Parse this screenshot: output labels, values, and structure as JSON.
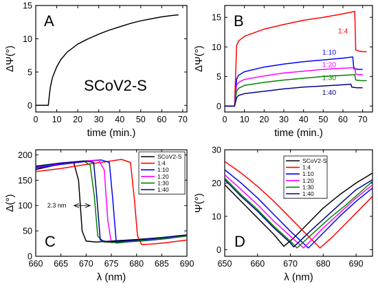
{
  "chart_data": [
    {
      "panel": "A",
      "type": "line",
      "xlabel": "time (min.)",
      "ylabel": "ΔΨ(°)",
      "xlim": [
        0,
        72
      ],
      "ylim": [
        -1,
        15
      ],
      "xticks": [
        0,
        10,
        20,
        30,
        40,
        50,
        60,
        70
      ],
      "yticks": [
        0,
        5,
        10,
        15
      ],
      "annotations": [
        "SCoV2-S"
      ],
      "series": [
        {
          "color": "#000000",
          "x": [
            0,
            6,
            6.5,
            7,
            8,
            9,
            10,
            12,
            15,
            20,
            25,
            30,
            35,
            40,
            45,
            50,
            55,
            60,
            65,
            68
          ],
          "y": [
            0,
            0,
            1.6,
            2.8,
            4.2,
            5.0,
            5.8,
            6.9,
            8.0,
            9.2,
            10.0,
            10.7,
            11.3,
            11.8,
            12.3,
            12.7,
            13.0,
            13.3,
            13.5,
            13.6
          ]
        }
      ]
    },
    {
      "panel": "B",
      "type": "line",
      "xlabel": "time (min.)",
      "ylabel": "ΔΨ(°)",
      "xlim": [
        0,
        75
      ],
      "ylim": [
        -1,
        17
      ],
      "xticks": [
        0,
        10,
        20,
        30,
        40,
        50,
        60,
        70
      ],
      "yticks": [
        0,
        5,
        10,
        15
      ],
      "series": [
        {
          "name": "1:4",
          "color": "#ff0000",
          "x": [
            0,
            5,
            5.5,
            6,
            7,
            10,
            15,
            20,
            30,
            40,
            50,
            60,
            66,
            66.5,
            68,
            70,
            72
          ],
          "y": [
            0,
            0,
            5,
            10.2,
            11.0,
            11.8,
            12.4,
            13.0,
            13.8,
            14.5,
            15.0,
            15.6,
            16.0,
            9.5,
            9.3,
            9.2,
            9.2
          ]
        },
        {
          "name": "1:10",
          "color": "#0000ff",
          "x": [
            0,
            5,
            6,
            7,
            10,
            20,
            30,
            40,
            50,
            60,
            65,
            65.5,
            68,
            70
          ],
          "y": [
            0,
            0,
            4.5,
            5.2,
            5.8,
            6.6,
            7.1,
            7.5,
            7.8,
            8.1,
            8.3,
            6.3,
            6.2,
            6.2
          ]
        },
        {
          "name": "1:20",
          "color": "#ff00ff",
          "x": [
            0,
            5,
            6,
            7,
            10,
            20,
            30,
            40,
            50,
            60,
            66,
            66.5,
            68,
            70
          ],
          "y": [
            0,
            0,
            3.5,
            4.0,
            4.5,
            5.1,
            5.6,
            5.9,
            6.2,
            6.4,
            6.5,
            5.4,
            5.3,
            5.3
          ]
        },
        {
          "name": "1:30",
          "color": "#008000",
          "x": [
            0,
            5,
            6,
            7,
            10,
            20,
            30,
            40,
            50,
            60,
            66,
            66.5,
            69,
            72
          ],
          "y": [
            0,
            0,
            2.5,
            3.0,
            3.5,
            4.0,
            4.4,
            4.7,
            5.0,
            5.2,
            5.3,
            4.4,
            4.3,
            4.3
          ]
        },
        {
          "name": "1:40",
          "color": "#00008b",
          "x": [
            0,
            5,
            6,
            7,
            10,
            20,
            30,
            40,
            50,
            60,
            64,
            64.5,
            67,
            70
          ],
          "y": [
            0,
            0,
            1.4,
            1.8,
            2.1,
            2.5,
            2.9,
            3.2,
            3.4,
            3.6,
            3.7,
            3.2,
            3.1,
            3.1
          ]
        }
      ],
      "inline_labels": [
        {
          "text": "1:4",
          "x": 60,
          "y": 12.3,
          "color": "#ff0000"
        },
        {
          "text": "1:10",
          "x": 53,
          "y": 8.7,
          "color": "#0000ff"
        },
        {
          "text": "1:20",
          "x": 53,
          "y": 6.6,
          "color": "#ff00ff"
        },
        {
          "text": "1:30",
          "x": 53,
          "y": 4.4,
          "color": "#008000"
        },
        {
          "text": "1:40",
          "x": 53,
          "y": 1.9,
          "color": "#00008b"
        }
      ]
    },
    {
      "panel": "C",
      "type": "line",
      "xlabel": "λ (nm)",
      "ylabel": "Δ(°)",
      "xlim": [
        660,
        690
      ],
      "ylim": [
        0,
        210
      ],
      "xticks": [
        660,
        665,
        670,
        675,
        680,
        685,
        690
      ],
      "yticks": [
        0,
        50,
        100,
        150,
        200
      ],
      "legend": "top-right",
      "annotations": [
        "2.3 nm"
      ],
      "series": [
        {
          "name": "SCoV2-S",
          "color": "#000000",
          "x": [
            660,
            664,
            666,
            667.5,
            668.5,
            669.2,
            670,
            672,
            675,
            680,
            685,
            690
          ],
          "y": [
            171,
            180,
            184,
            186,
            150,
            50,
            30,
            28,
            30,
            33,
            37,
            42
          ]
        },
        {
          "name": "1:4",
          "color": "#ff0000",
          "x": [
            660,
            665,
            670,
            675,
            677,
            678.8,
            679.6,
            680.2,
            681,
            683,
            686,
            690
          ],
          "y": [
            167,
            173,
            181,
            188,
            191,
            185,
            110,
            40,
            23,
            24,
            27,
            32
          ]
        },
        {
          "name": "1:10",
          "color": "#0000ff",
          "x": [
            660,
            665,
            670,
            673,
            674.6,
            675.3,
            676,
            678,
            682,
            686,
            690
          ],
          "y": [
            174,
            181,
            187,
            190,
            185,
            110,
            26,
            28,
            31,
            35,
            40
          ]
        },
        {
          "name": "1:20",
          "color": "#ff00ff",
          "x": [
            660,
            665,
            670,
            672.5,
            673.6,
            674.3,
            675,
            677,
            681,
            686,
            690
          ],
          "y": [
            176,
            183,
            188,
            190,
            170,
            70,
            27,
            28,
            31,
            36,
            40
          ]
        },
        {
          "name": "1:30",
          "color": "#008000",
          "x": [
            660,
            665,
            669.5,
            670.8,
            671.6,
            672.3,
            673.5,
            676,
            680,
            685,
            690
          ],
          "y": [
            178,
            184,
            188,
            180,
            120,
            40,
            28,
            27,
            30,
            35,
            40
          ]
        },
        {
          "name": "1:40",
          "color": "#00008b",
          "x": [
            660,
            665,
            670,
            671.5,
            672.1,
            672.8,
            674,
            676,
            680,
            685,
            690
          ],
          "y": [
            177,
            184,
            188,
            185,
            120,
            32,
            29,
            29,
            32,
            37,
            42
          ]
        }
      ]
    },
    {
      "panel": "D",
      "type": "line",
      "xlabel": "λ (nm)",
      "ylabel": "Ψ(°)",
      "xlim": [
        650,
        695
      ],
      "ylim": [
        -2,
        30
      ],
      "xticks": [
        650,
        660,
        670,
        680,
        690
      ],
      "yticks": [
        0,
        10,
        20,
        30
      ],
      "legend": "top-left",
      "series": [
        {
          "name": "SCoV2-S",
          "color": "#000000",
          "x": [
            650,
            655,
            660,
            665,
            668,
            671,
            675,
            680,
            685,
            690,
            695
          ],
          "y": [
            19.5,
            14.5,
            9.5,
            4.5,
            1.0,
            3.5,
            7.5,
            12.5,
            16.5,
            20.0,
            23.0
          ]
        },
        {
          "name": "1:4",
          "color": "#ff0000",
          "x": [
            650,
            655,
            660,
            665,
            670,
            675,
            679,
            683,
            687,
            691,
            695
          ],
          "y": [
            26.5,
            23.0,
            19.0,
            14.5,
            9.5,
            4.5,
            0.5,
            4.0,
            8.0,
            12.0,
            16.0
          ]
        },
        {
          "name": "1:10",
          "color": "#0000ff",
          "x": [
            650,
            655,
            660,
            665,
            670,
            675.5,
            680,
            685,
            690,
            695
          ],
          "y": [
            24.0,
            20.0,
            15.5,
            10.5,
            5.5,
            0.5,
            5.0,
            10.0,
            14.5,
            18.5
          ]
        },
        {
          "name": "1:20",
          "color": "#ff00ff",
          "x": [
            650,
            655,
            660,
            665,
            670,
            674,
            680,
            685,
            690,
            695
          ],
          "y": [
            22.5,
            18.0,
            13.5,
            8.5,
            4.0,
            0.5,
            6.5,
            11.0,
            15.5,
            19.5
          ]
        },
        {
          "name": "1:30",
          "color": "#008000",
          "x": [
            650,
            655,
            660,
            665,
            670,
            672,
            677,
            682,
            687,
            691,
            695
          ],
          "y": [
            21.5,
            16.5,
            12.0,
            7.0,
            2.5,
            0.5,
            5.0,
            9.5,
            13.5,
            17.0,
            20.5
          ]
        },
        {
          "name": "1:40",
          "color": "#00008b",
          "x": [
            650,
            655,
            660,
            665,
            670,
            671,
            676,
            681,
            686,
            690,
            695
          ],
          "y": [
            21.0,
            16.0,
            11.5,
            6.5,
            2.0,
            0.8,
            5.5,
            10.0,
            14.5,
            18.0,
            21.0
          ]
        }
      ]
    }
  ]
}
